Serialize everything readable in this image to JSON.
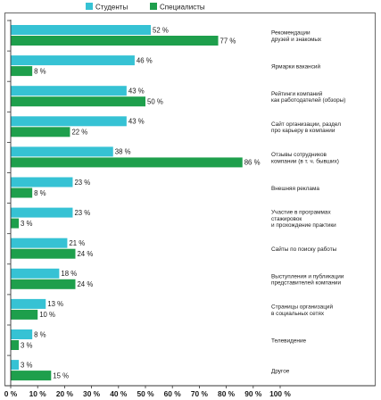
{
  "chart_data": {
    "type": "bar",
    "orientation": "horizontal",
    "categories": [
      [
        "Рекомендации",
        "друзей и знакомых"
      ],
      [
        "Ярмарки вакансий"
      ],
      [
        "Рейтинги компаний",
        "как работодателей (обзоры)"
      ],
      [
        "Сайт организации, раздел",
        "про карьеру в компании"
      ],
      [
        "Отзывы сотрудников",
        "компании (в т. ч. бывших)"
      ],
      [
        "Внешняя реклама"
      ],
      [
        "Участие в программах",
        "стажировок",
        "и прохождение практики"
      ],
      [
        "Сайты по поиску работы"
      ],
      [
        "Выступления и публикации",
        "представителей компании"
      ],
      [
        "Страницы организаций",
        "в социальных сетях"
      ],
      [
        "Телевидение"
      ],
      [
        "Другое"
      ]
    ],
    "series": [
      {
        "name": "Студенты",
        "color": "#36c2d4",
        "values": [
          52,
          46,
          43,
          43,
          38,
          23,
          23,
          21,
          18,
          13,
          8,
          3
        ]
      },
      {
        "name": "Специалисты",
        "color": "#1e9f4c",
        "values": [
          77,
          8,
          50,
          22,
          86,
          8,
          3,
          24,
          24,
          10,
          3,
          15
        ]
      }
    ],
    "value_label_suffix": " %",
    "xaxis": {
      "min": 0,
      "max": 100,
      "ticks": [
        0,
        10,
        20,
        30,
        40,
        50,
        60,
        70,
        80,
        90,
        100
      ],
      "tick_suffix": " %"
    },
    "category_label_position": "right",
    "legend_position": "top",
    "grid": false
  }
}
